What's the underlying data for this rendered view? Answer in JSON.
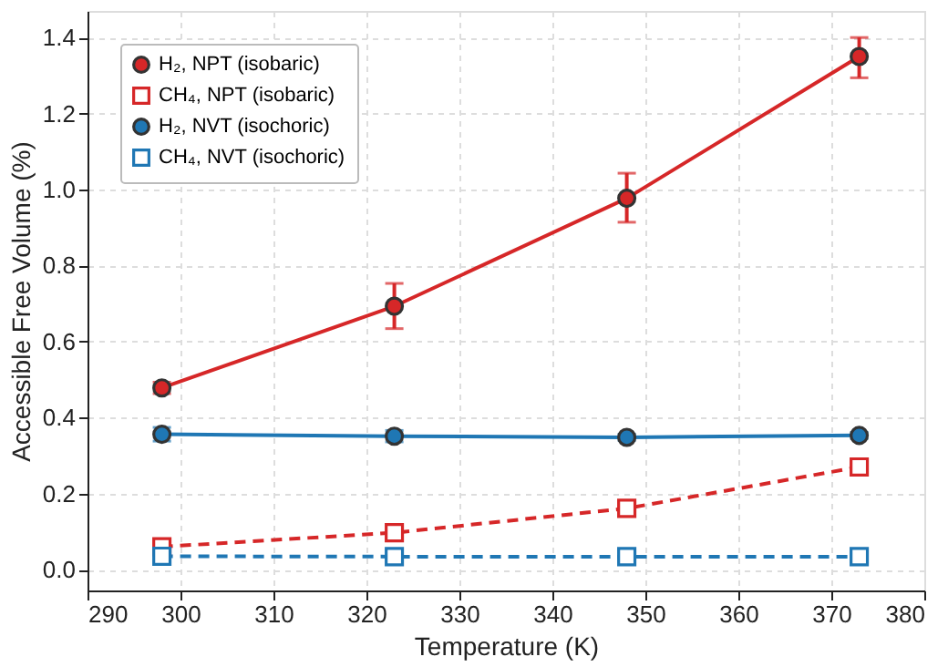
{
  "chart_data": {
    "type": "line",
    "xlabel": "Temperature (K)",
    "ylabel": "Accessible Free Volume (%)",
    "x": [
      298,
      323,
      348,
      373
    ],
    "series": [
      {
        "name": "H₂, NPT (isobaric)",
        "color": "#d62728",
        "marker": "circle",
        "line_style": "solid",
        "values": [
          0.478,
          0.693,
          0.977,
          1.35
        ],
        "errors": [
          0.015,
          [
            0.634,
            0.753
          ],
          [
            0.914,
            1.043
          ],
          [
            1.294,
            1.4
          ]
        ]
      },
      {
        "name": "CH₄, NPT (isobaric)",
        "color": "#d62728",
        "marker": "square",
        "line_style": "dashed",
        "values": [
          0.06,
          0.097,
          0.161,
          0.27
        ]
      },
      {
        "name": "H₂, NVT (isochoric)",
        "color": "#1f77b4",
        "marker": "circle",
        "line_style": "solid",
        "values": [
          0.356,
          0.351,
          0.348,
          0.353
        ],
        "errors": [
          0.018,
          0.015,
          0.008,
          0.008
        ]
      },
      {
        "name": "CH₄, NVT (isochoric)",
        "color": "#1f77b4",
        "marker": "square",
        "line_style": "dashed",
        "values": [
          0.035,
          0.034,
          0.034,
          0.034
        ]
      }
    ],
    "xlim": [
      290,
      380
    ],
    "xticks": [
      290,
      300,
      310,
      320,
      330,
      340,
      350,
      360,
      370,
      380
    ],
    "ylim": [
      -0.055,
      1.47
    ],
    "yticks": [
      {
        "value": 0,
        "label": "0.0"
      },
      0.2,
      0.4,
      0.6,
      0.8,
      {
        "value": 1,
        "label": "1.0"
      },
      1.2,
      1.4
    ],
    "grid": true,
    "legend": "top left"
  }
}
